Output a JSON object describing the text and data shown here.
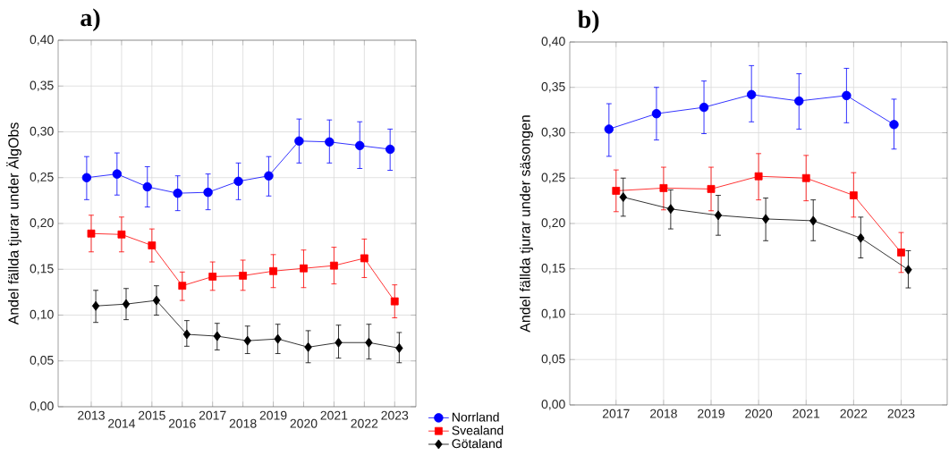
{
  "chart_data": [
    {
      "type": "line",
      "title": "a)",
      "ylabel": "Andel fällda tjurar under ÄlgObs",
      "categories": [
        "2013",
        "2014",
        "2015",
        "2016",
        "2017",
        "2018",
        "2019",
        "2020",
        "2021",
        "2022",
        "2023"
      ],
      "ylim": [
        0,
        0.4
      ],
      "yticks": [
        {
          "value": 0,
          "label": "0,00"
        },
        {
          "value": 0.05,
          "label": "0,05"
        },
        {
          "value": 0.1,
          "label": "0,10"
        },
        {
          "value": 0.15,
          "label": "0,15"
        },
        {
          "value": 0.2,
          "label": "0,20"
        },
        {
          "value": 0.25,
          "label": "0,25"
        },
        {
          "value": 0.3,
          "label": "0,30"
        },
        {
          "value": 0.35,
          "label": "0,35"
        },
        {
          "value": 0.4,
          "label": "0,40"
        }
      ],
      "grid": true,
      "legend": "bottom right",
      "line_style": "solid",
      "series": [
        {
          "name": "Norrland",
          "color": "#0000ff",
          "marker": "circle",
          "values": [
            0.25,
            0.254,
            0.24,
            0.233,
            0.234,
            0.246,
            0.252,
            0.29,
            0.289,
            0.285,
            0.281
          ],
          "errors": [
            [
              0.226,
              0.273
            ],
            [
              0.231,
              0.277
            ],
            [
              0.218,
              0.262
            ],
            [
              0.214,
              0.252
            ],
            [
              0.215,
              0.254
            ],
            [
              0.226,
              0.266
            ],
            [
              0.23,
              0.273
            ],
            [
              0.266,
              0.314
            ],
            [
              0.266,
              0.313
            ],
            [
              0.26,
              0.311
            ],
            [
              0.258,
              0.303
            ]
          ]
        },
        {
          "name": "Svealand",
          "color": "#ff0000",
          "marker": "square",
          "values": [
            0.189,
            0.188,
            0.176,
            0.132,
            0.142,
            0.143,
            0.148,
            0.151,
            0.154,
            0.162,
            0.115
          ],
          "errors": [
            [
              0.169,
              0.209
            ],
            [
              0.169,
              0.207
            ],
            [
              0.158,
              0.194
            ],
            [
              0.116,
              0.147
            ],
            [
              0.127,
              0.158
            ],
            [
              0.127,
              0.16
            ],
            [
              0.13,
              0.166
            ],
            [
              0.13,
              0.171
            ],
            [
              0.134,
              0.174
            ],
            [
              0.141,
              0.183
            ],
            [
              0.097,
              0.133
            ]
          ]
        },
        {
          "name": "Götaland",
          "color": "#000000",
          "marker": "diamond",
          "values": [
            0.11,
            0.112,
            0.116,
            0.079,
            0.077,
            0.072,
            0.074,
            0.065,
            0.07,
            0.07,
            0.064
          ],
          "errors": [
            [
              0.092,
              0.127
            ],
            [
              0.095,
              0.129
            ],
            [
              0.1,
              0.132
            ],
            [
              0.066,
              0.094
            ],
            [
              0.062,
              0.091
            ],
            [
              0.058,
              0.088
            ],
            [
              0.058,
              0.09
            ],
            [
              0.048,
              0.083
            ],
            [
              0.053,
              0.089
            ],
            [
              0.052,
              0.09
            ],
            [
              0.048,
              0.081
            ]
          ]
        }
      ]
    },
    {
      "type": "line",
      "title": "b)",
      "ylabel": "Andel fällda tjurar under säsongen",
      "categories": [
        "2017",
        "2018",
        "2019",
        "2020",
        "2021",
        "2022",
        "2023"
      ],
      "ylim": [
        0,
        0.4
      ],
      "yticks": [
        {
          "value": 0,
          "label": "0,00"
        },
        {
          "value": 0.05,
          "label": "0,05"
        },
        {
          "value": 0.1,
          "label": "0,10"
        },
        {
          "value": 0.15,
          "label": "0,15"
        },
        {
          "value": 0.2,
          "label": "0,20"
        },
        {
          "value": 0.25,
          "label": "0,25"
        },
        {
          "value": 0.3,
          "label": "0,30"
        },
        {
          "value": 0.35,
          "label": "0,35"
        },
        {
          "value": 0.4,
          "label": "0,40"
        }
      ],
      "grid": true,
      "line_style": "solid",
      "series": [
        {
          "color": "#0000ff",
          "marker": "circle",
          "values": [
            0.304,
            0.321,
            0.328,
            0.342,
            0.335,
            0.341,
            0.309
          ],
          "errors": [
            [
              0.274,
              0.332
            ],
            [
              0.292,
              0.35
            ],
            [
              0.299,
              0.357
            ],
            [
              0.312,
              0.374
            ],
            [
              0.304,
              0.365
            ],
            [
              0.311,
              0.371
            ],
            [
              0.282,
              0.337
            ]
          ]
        },
        {
          "color": "#ff0000",
          "marker": "square",
          "values": [
            0.236,
            0.239,
            0.238,
            0.252,
            0.25,
            0.231,
            0.168
          ],
          "errors": [
            [
              0.213,
              0.259
            ],
            [
              0.215,
              0.262
            ],
            [
              0.214,
              0.262
            ],
            [
              0.226,
              0.277
            ],
            [
              0.225,
              0.275
            ],
            [
              0.207,
              0.256
            ],
            [
              0.146,
              0.19
            ]
          ]
        },
        {
          "color": "#000000",
          "marker": "diamond",
          "values": [
            0.229,
            0.216,
            0.209,
            0.205,
            0.203,
            0.184,
            0.149
          ],
          "errors": [
            [
              0.208,
              0.25
            ],
            [
              0.194,
              0.237
            ],
            [
              0.187,
              0.231
            ],
            [
              0.181,
              0.228
            ],
            [
              0.181,
              0.226
            ],
            [
              0.162,
              0.207
            ],
            [
              0.129,
              0.17
            ]
          ]
        }
      ]
    }
  ]
}
